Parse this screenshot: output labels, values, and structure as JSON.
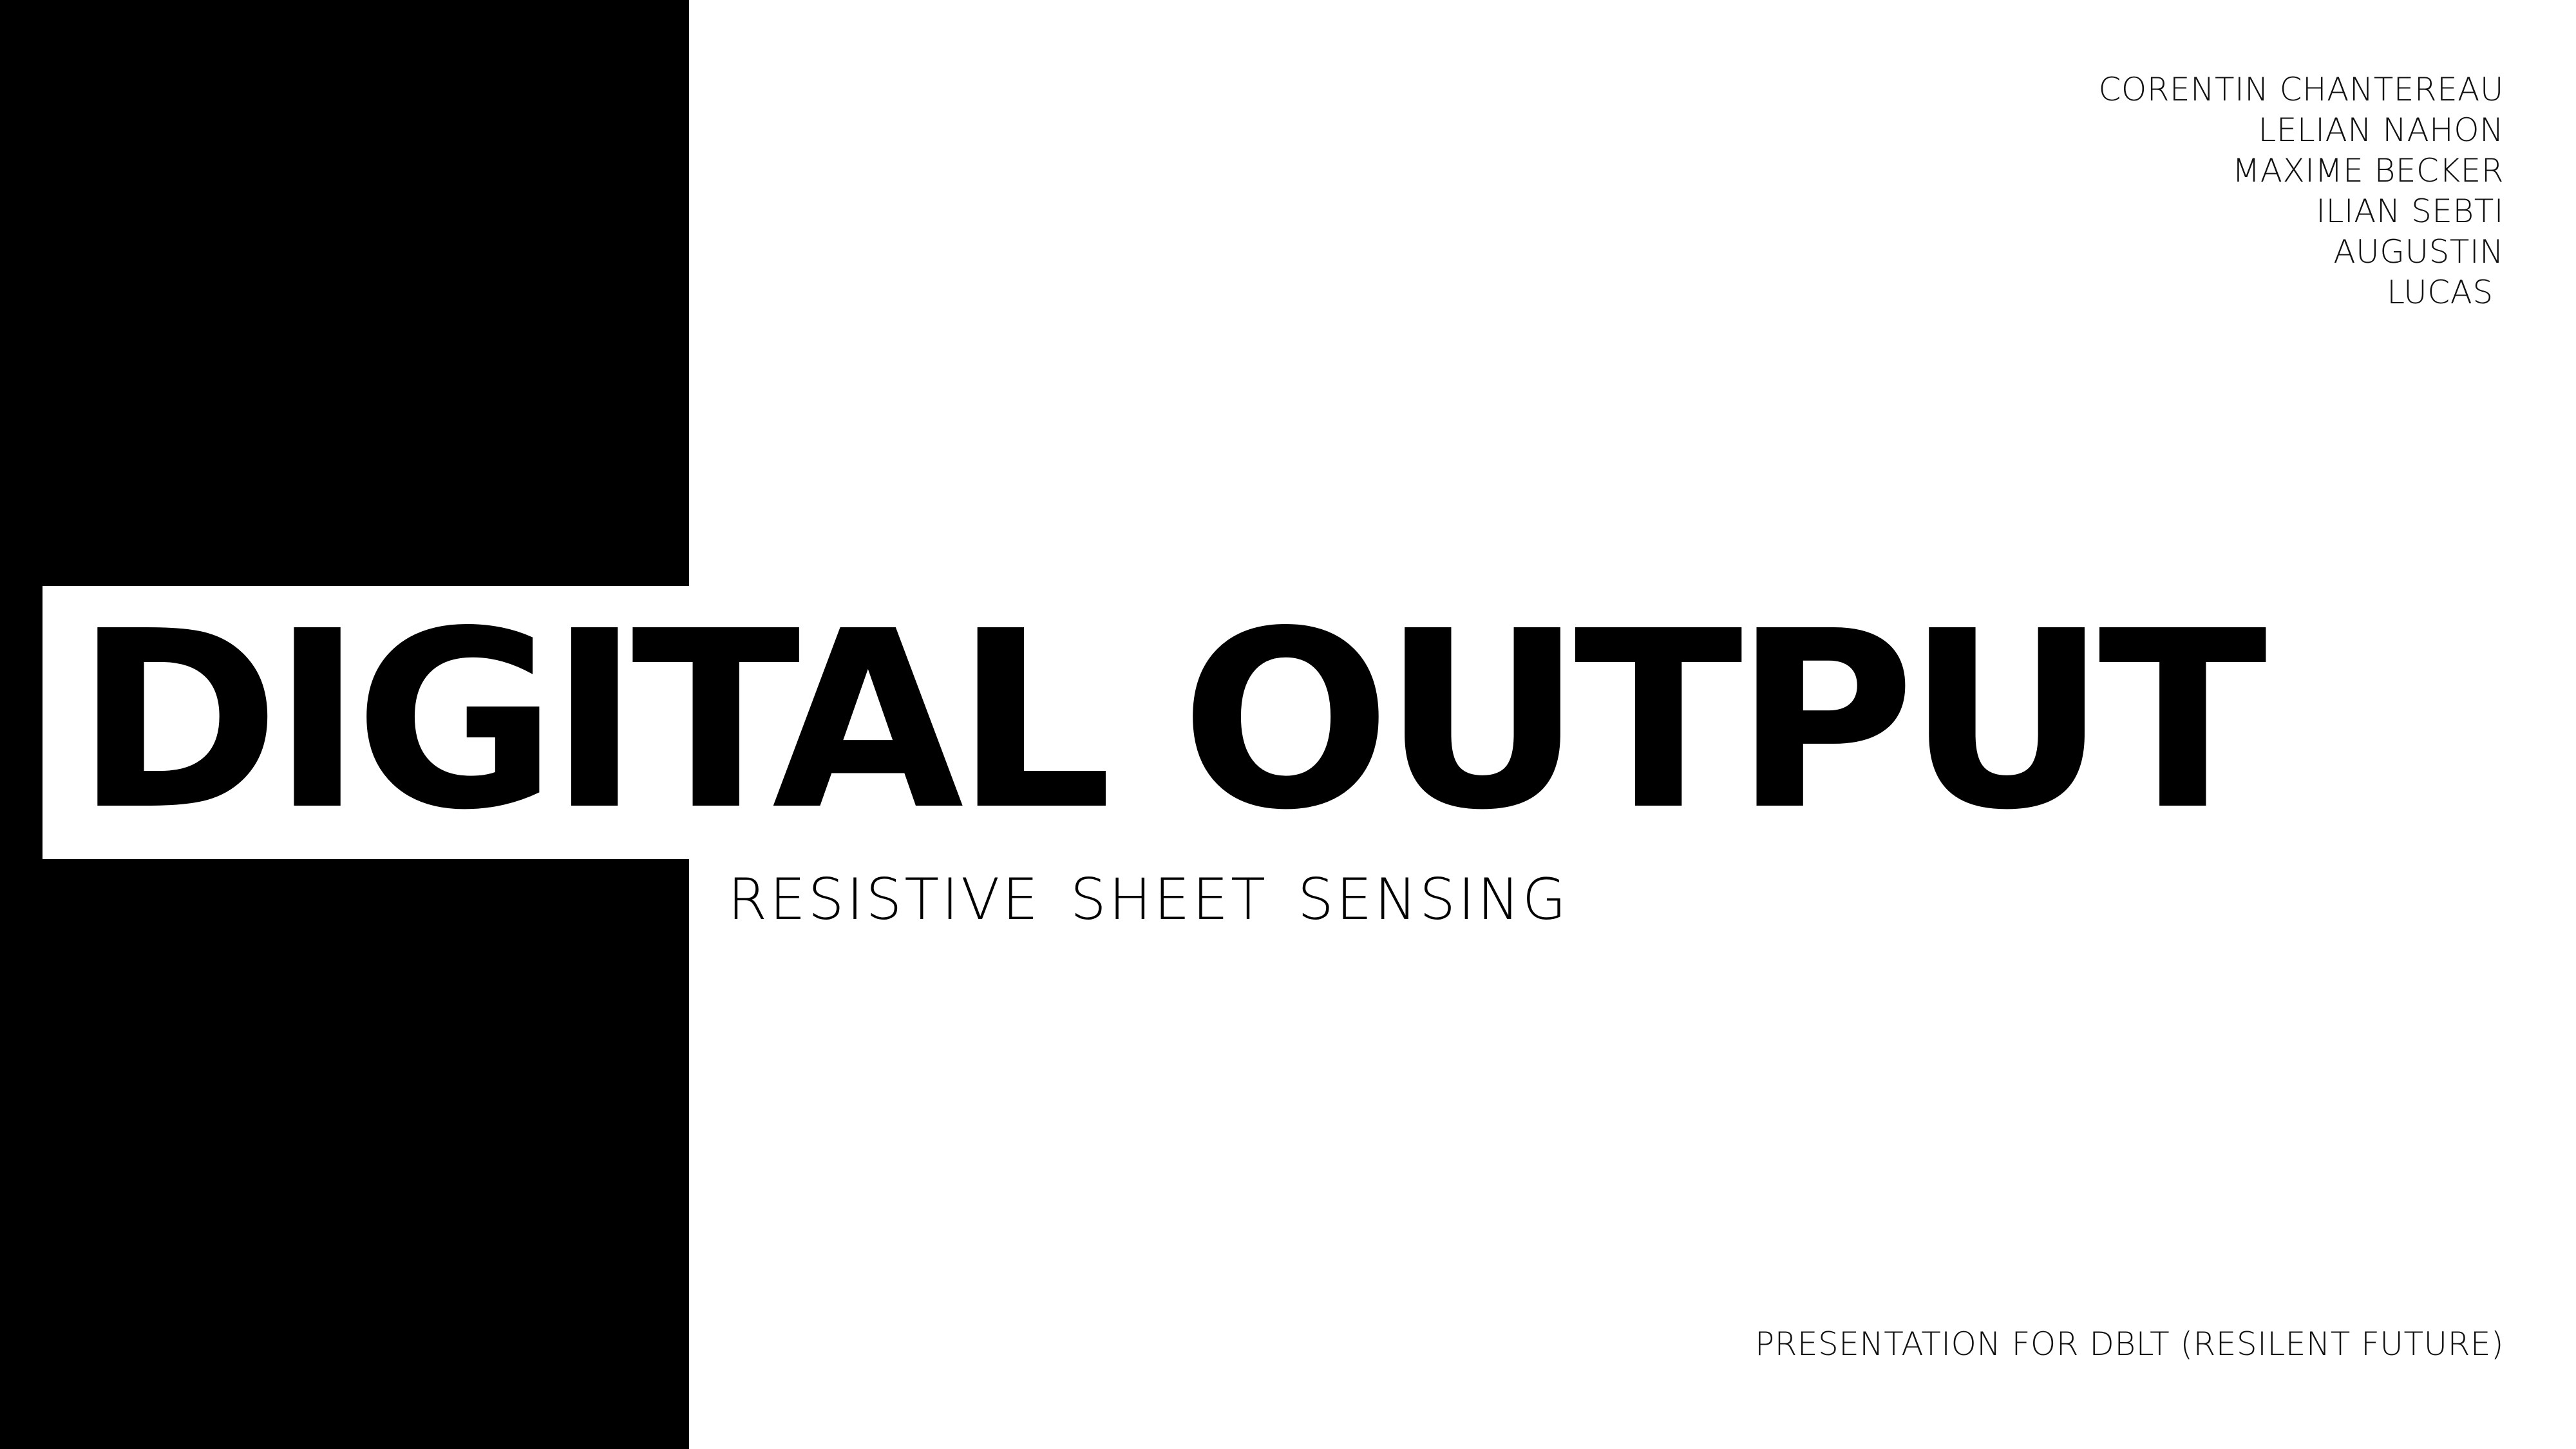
{
  "slide": {
    "title": "DIGITAL OUTPUT",
    "subtitle": "RESISTIVE SHEET SENSING",
    "authors": [
      "CORENTIN CHANTEREAU",
      "LELIAN NAHON",
      "MAXIME BECKER",
      "ILIAN SEBTI",
      "AUGUSTIN",
      "LUCAS "
    ],
    "footer": "PRESENTATION FOR DBLT (RESILENT FUTURE)"
  },
  "colors": {
    "background": "#ffffff",
    "panel": "#000000",
    "text": "#000000"
  }
}
